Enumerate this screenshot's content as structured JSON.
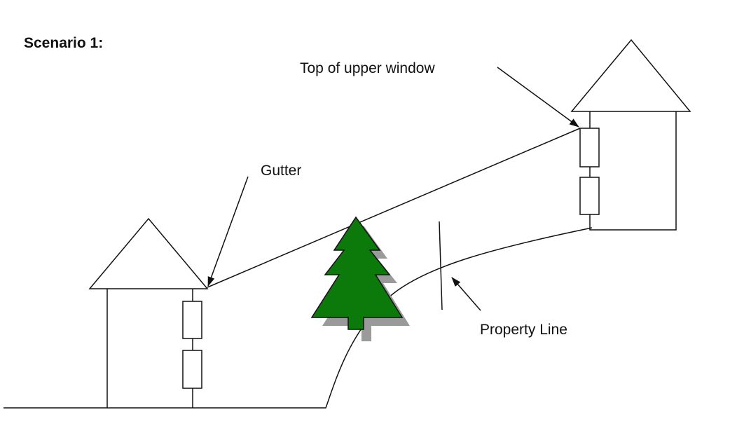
{
  "title": "Scenario 1:",
  "labels": {
    "top_of_upper_window": "Top of upper window",
    "gutter": "Gutter",
    "property_line": "Property Line"
  },
  "colors": {
    "tree_fill": "#0b7a0b",
    "tree_shadow": "#9a9a9a",
    "line": "#111111"
  }
}
